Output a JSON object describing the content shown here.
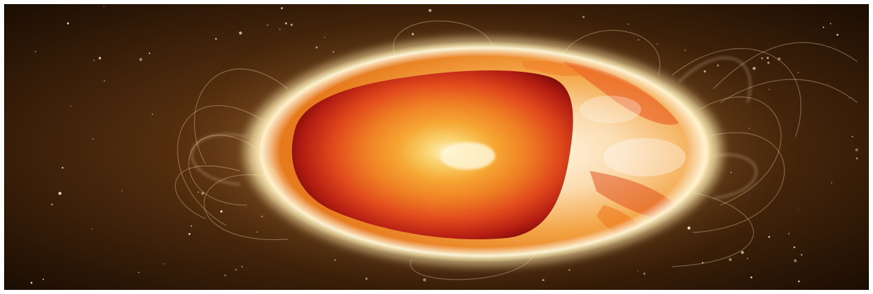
{
  "scene": {
    "subject": "sun-cutaway-core",
    "colors": {
      "frame": "#ffffff",
      "space_dark": "#1a0d04",
      "space_mid": "#5a3210",
      "glow": "#fff4c8",
      "surface": "#f0a030",
      "core_outer": "#8e0e0a",
      "core_mid": "#e0481c",
      "core_inner": "#f6a632",
      "core_center": "#fff2c0"
    }
  }
}
